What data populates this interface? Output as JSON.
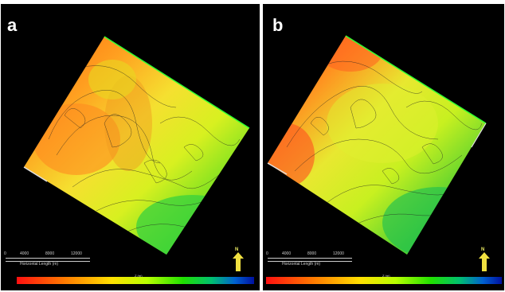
{
  "panels": [
    {
      "id": "a",
      "letter": "a",
      "scale": {
        "ticks": [
          "0",
          "4000",
          "8000",
          "12000"
        ],
        "caption": "Horizontal Length (m)"
      },
      "north": "N",
      "colorbar": {
        "title": "Z (m)",
        "ticks": [
          "",
          "",
          "",
          "",
          "",
          "",
          ""
        ]
      }
    },
    {
      "id": "b",
      "letter": "b",
      "scale": {
        "ticks": [
          "0",
          "4000",
          "8000",
          "12000"
        ],
        "caption": "Horizontal Length (m)"
      },
      "north": "N",
      "colorbar": {
        "title": "Z (m)",
        "ticks": [
          "",
          "",
          "",
          "",
          "",
          "",
          ""
        ]
      }
    }
  ],
  "colors": {
    "background": "#000000",
    "colormap": [
      "#ff1010",
      "#ff7a00",
      "#ffe000",
      "#b8ff00",
      "#20e000",
      "#00c070",
      "#0060d0",
      "#0010a0"
    ],
    "north_arrow": "#f0e040"
  }
}
